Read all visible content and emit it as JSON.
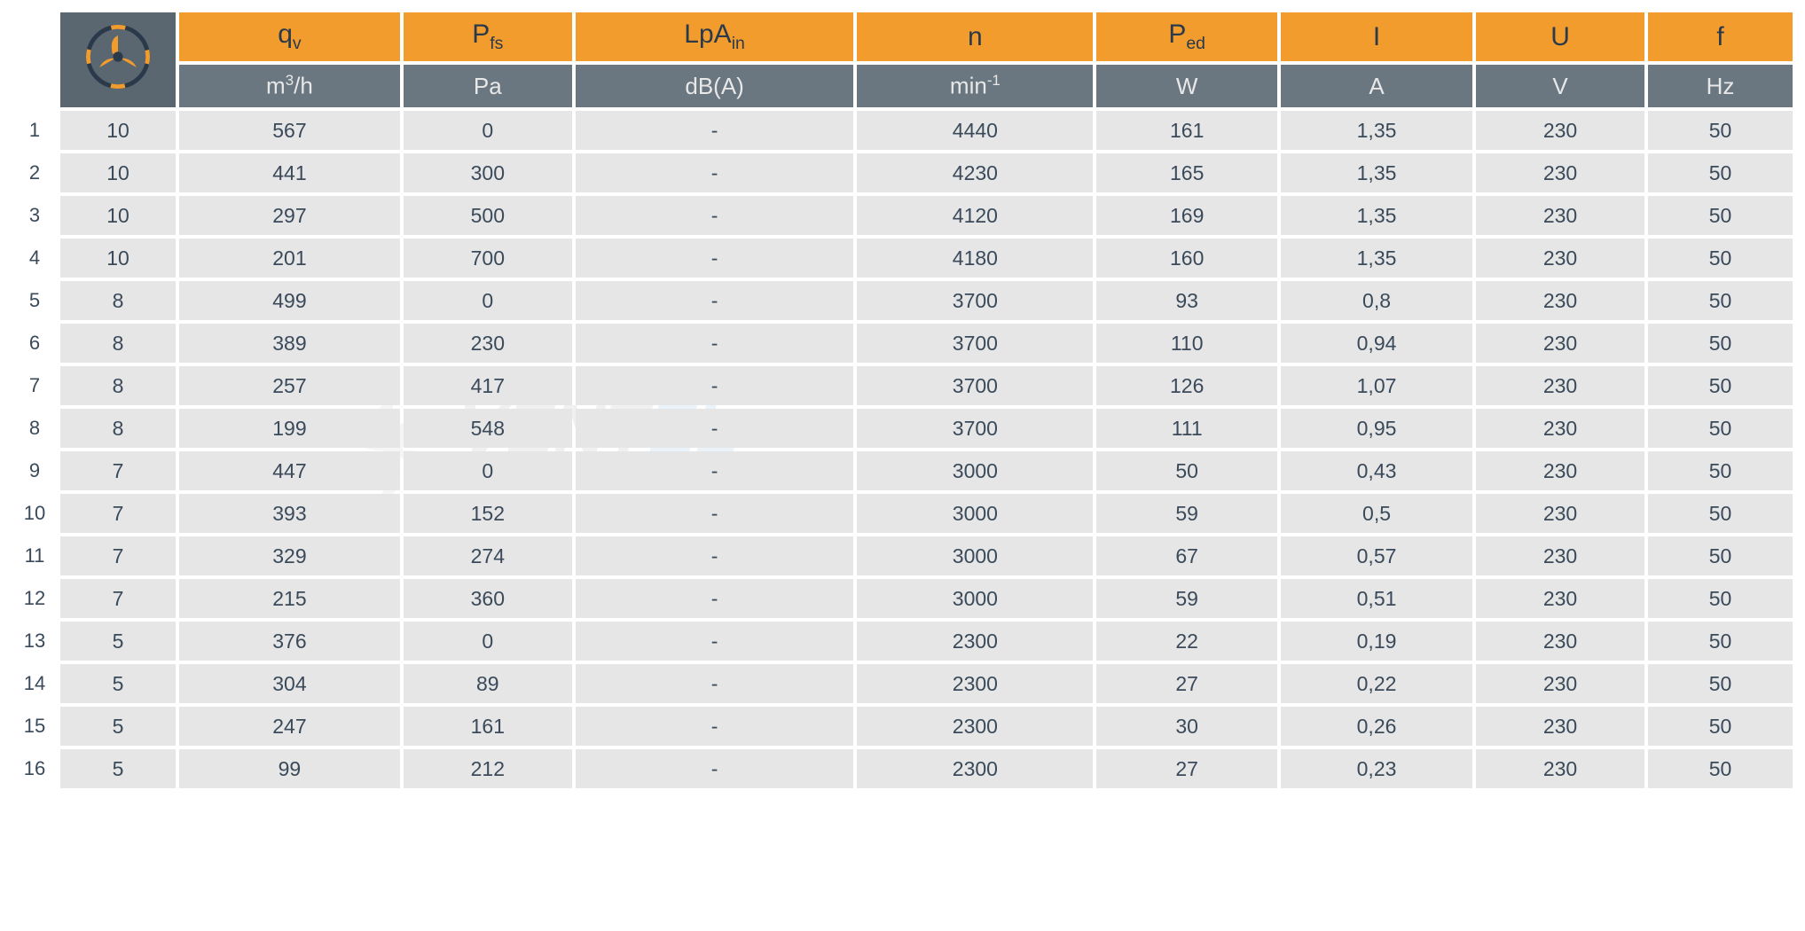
{
  "table": {
    "columns": [
      {
        "symbol": "q",
        "sub": "v",
        "unit": "m",
        "unit_sup": "3",
        "unit_suffix": "/h"
      },
      {
        "symbol": "P",
        "sub": "fs",
        "unit": "Pa"
      },
      {
        "symbol": "LpA",
        "sub": "in",
        "unit": "dB(A)"
      },
      {
        "symbol": "n",
        "unit": "min",
        "unit_sup": "-1"
      },
      {
        "symbol": "P",
        "sub": "ed",
        "unit": "W"
      },
      {
        "symbol": "I",
        "unit": "A"
      },
      {
        "symbol": "U",
        "unit": "V"
      },
      {
        "symbol": "f",
        "unit": "Hz"
      }
    ],
    "rows": [
      {
        "num": "1",
        "fan": "10",
        "values": [
          "567",
          "0",
          "-",
          "4440",
          "161",
          "1,35",
          "230",
          "50"
        ]
      },
      {
        "num": "2",
        "fan": "10",
        "values": [
          "441",
          "300",
          "-",
          "4230",
          "165",
          "1,35",
          "230",
          "50"
        ]
      },
      {
        "num": "3",
        "fan": "10",
        "values": [
          "297",
          "500",
          "-",
          "4120",
          "169",
          "1,35",
          "230",
          "50"
        ]
      },
      {
        "num": "4",
        "fan": "10",
        "values": [
          "201",
          "700",
          "-",
          "4180",
          "160",
          "1,35",
          "230",
          "50"
        ]
      },
      {
        "num": "5",
        "fan": "8",
        "values": [
          "499",
          "0",
          "-",
          "3700",
          "93",
          "0,8",
          "230",
          "50"
        ]
      },
      {
        "num": "6",
        "fan": "8",
        "values": [
          "389",
          "230",
          "-",
          "3700",
          "110",
          "0,94",
          "230",
          "50"
        ]
      },
      {
        "num": "7",
        "fan": "8",
        "values": [
          "257",
          "417",
          "-",
          "3700",
          "126",
          "1,07",
          "230",
          "50"
        ]
      },
      {
        "num": "8",
        "fan": "8",
        "values": [
          "199",
          "548",
          "-",
          "3700",
          "111",
          "0,95",
          "230",
          "50"
        ]
      },
      {
        "num": "9",
        "fan": "7",
        "values": [
          "447",
          "0",
          "-",
          "3000",
          "50",
          "0,43",
          "230",
          "50"
        ]
      },
      {
        "num": "10",
        "fan": "7",
        "values": [
          "393",
          "152",
          "-",
          "3000",
          "59",
          "0,5",
          "230",
          "50"
        ]
      },
      {
        "num": "11",
        "fan": "7",
        "values": [
          "329",
          "274",
          "-",
          "3000",
          "67",
          "0,57",
          "230",
          "50"
        ]
      },
      {
        "num": "12",
        "fan": "7",
        "values": [
          "215",
          "360",
          "-",
          "3000",
          "59",
          "0,51",
          "230",
          "50"
        ]
      },
      {
        "num": "13",
        "fan": "5",
        "values": [
          "376",
          "0",
          "-",
          "2300",
          "22",
          "0,19",
          "230",
          "50"
        ]
      },
      {
        "num": "14",
        "fan": "5",
        "values": [
          "304",
          "89",
          "-",
          "2300",
          "27",
          "0,22",
          "230",
          "50"
        ]
      },
      {
        "num": "15",
        "fan": "5",
        "values": [
          "247",
          "161",
          "-",
          "2300",
          "30",
          "0,26",
          "230",
          "50"
        ]
      },
      {
        "num": "16",
        "fan": "5",
        "values": [
          "99",
          "212",
          "-",
          "2300",
          "27",
          "0,23",
          "230",
          "50"
        ]
      }
    ],
    "colors": {
      "header_symbol_bg": "#f39c2e",
      "header_symbol_text": "#2a3a4a",
      "header_unit_bg": "#6a7680",
      "header_unit_text": "#e8e8e8",
      "fan_cell_bg": "#5a6670",
      "data_cell_bg": "#e6e6e6",
      "text_color": "#3a4a5a",
      "fan_icon_stroke": "#2a3a4a",
      "fan_icon_accent": "#f39c2e"
    },
    "watermark": {
      "text_prefix": "VENT",
      "text_suffix": "EL",
      "opacity": 0.12
    }
  }
}
